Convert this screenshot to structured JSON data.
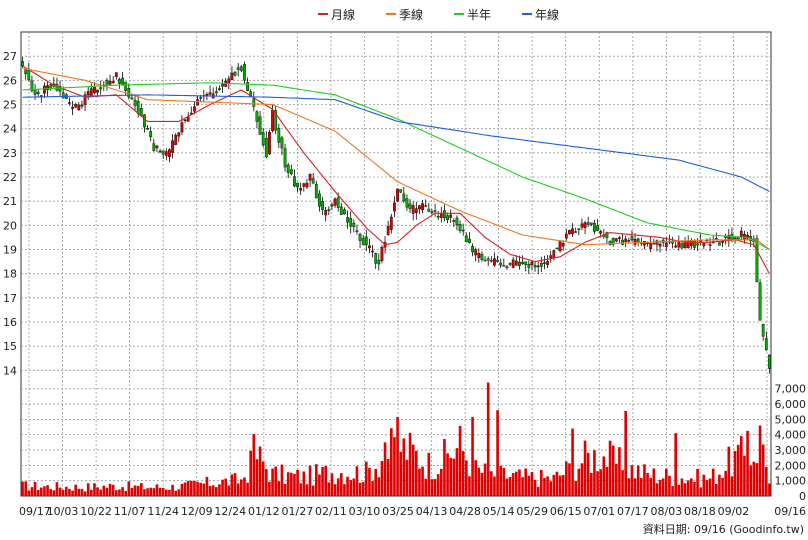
{
  "chart_data": {
    "type": "candlestick",
    "legend": {
      "placement": "top-center",
      "entries": [
        {
          "name": "月線",
          "color": "#e02020"
        },
        {
          "name": "季線",
          "color": "#f07820"
        },
        {
          "name": "半年",
          "color": "#20d020"
        },
        {
          "name": "年線",
          "color": "#2060e0"
        }
      ]
    },
    "price_axis": {
      "ylim": [
        13.6,
        28.0
      ],
      "ticks": [
        14,
        15,
        16,
        17,
        18,
        19,
        20,
        21,
        22,
        23,
        24,
        25,
        26,
        27
      ]
    },
    "volume_axis": {
      "ylim": [
        0,
        7700
      ],
      "ticks": [
        0,
        1000,
        2000,
        3000,
        4000,
        5000,
        6000,
        7000
      ],
      "tick_labels": [
        "0",
        "1,000",
        "2,000",
        "3,000",
        "4,000",
        "5,000",
        "6,000",
        "7,000"
      ]
    },
    "x_tick_labels": [
      "09/17",
      "10/03",
      "10/22",
      "11/07",
      "11/24",
      "12/09",
      "12/24",
      "01/12",
      "01/27",
      "02/11",
      "03/10",
      "03/25",
      "04/13",
      "04/28",
      "05/14",
      "05/29",
      "06/15",
      "07/01",
      "07/17",
      "08/03",
      "08/18",
      "09/02",
      "09/16"
    ],
    "grid": true,
    "bar_count": 240,
    "candle_colors": {
      "up": "#e00000",
      "down": "#00b000"
    },
    "volume_color": "#e00000",
    "close_anchors": [
      [
        0,
        26.6
      ],
      [
        4,
        25.4
      ],
      [
        10,
        25.8
      ],
      [
        16,
        24.8
      ],
      [
        22,
        25.5
      ],
      [
        30,
        26.2
      ],
      [
        36,
        25.0
      ],
      [
        42,
        23.2
      ],
      [
        46,
        22.9
      ],
      [
        50,
        24.0
      ],
      [
        56,
        25.2
      ],
      [
        62,
        25.5
      ],
      [
        66,
        26.2
      ],
      [
        70,
        26.5
      ],
      [
        72,
        25.6
      ],
      [
        74,
        24.8
      ],
      [
        78,
        23.0
      ],
      [
        80,
        24.6
      ],
      [
        84,
        22.5
      ],
      [
        88,
        21.5
      ],
      [
        92,
        22.0
      ],
      [
        96,
        20.5
      ],
      [
        100,
        21.0
      ],
      [
        106,
        19.8
      ],
      [
        110,
        19.2
      ],
      [
        114,
        18.4
      ],
      [
        118,
        20.5
      ],
      [
        120,
        21.5
      ],
      [
        124,
        20.6
      ],
      [
        128,
        20.8
      ],
      [
        132,
        20.5
      ],
      [
        136,
        20.4
      ],
      [
        140,
        19.9
      ],
      [
        144,
        18.9
      ],
      [
        148,
        18.6
      ],
      [
        154,
        18.3
      ],
      [
        158,
        18.5
      ],
      [
        164,
        18.3
      ],
      [
        168,
        18.6
      ],
      [
        172,
        19.2
      ],
      [
        176,
        19.8
      ],
      [
        180,
        20.1
      ],
      [
        184,
        19.8
      ],
      [
        188,
        19.3
      ],
      [
        194,
        19.4
      ],
      [
        200,
        19.2
      ],
      [
        206,
        19.3
      ],
      [
        212,
        19.2
      ],
      [
        218,
        19.3
      ],
      [
        222,
        19.3
      ],
      [
        226,
        19.5
      ],
      [
        230,
        19.6
      ],
      [
        234,
        19.4
      ],
      [
        236,
        16.0
      ],
      [
        238,
        14.8
      ],
      [
        239,
        14.25
      ]
    ],
    "volume_anchors": [
      [
        0,
        700
      ],
      [
        10,
        650
      ],
      [
        20,
        620
      ],
      [
        30,
        700
      ],
      [
        40,
        600
      ],
      [
        50,
        650
      ],
      [
        60,
        900
      ],
      [
        70,
        1100
      ],
      [
        75,
        2800
      ],
      [
        80,
        1500
      ],
      [
        90,
        1300
      ],
      [
        100,
        1700
      ],
      [
        110,
        1600
      ],
      [
        115,
        2600
      ],
      [
        120,
        3500
      ],
      [
        125,
        3000
      ],
      [
        130,
        2200
      ],
      [
        135,
        2600
      ],
      [
        140,
        3500
      ],
      [
        145,
        1800
      ],
      [
        150,
        1500
      ],
      [
        160,
        1300
      ],
      [
        170,
        1200
      ],
      [
        175,
        1900
      ],
      [
        180,
        2600
      ],
      [
        185,
        2900
      ],
      [
        190,
        2300
      ],
      [
        200,
        1500
      ],
      [
        210,
        1300
      ],
      [
        220,
        1200
      ],
      [
        228,
        2600
      ],
      [
        234,
        3000
      ],
      [
        236,
        3800
      ],
      [
        239,
        1300
      ]
    ],
    "volume_spikes": [
      [
        74,
        4050
      ],
      [
        116,
        3500
      ],
      [
        120,
        5150
      ],
      [
        144,
        5150
      ],
      [
        149,
        7400
      ],
      [
        152,
        5600
      ],
      [
        176,
        4400
      ],
      [
        193,
        5550
      ],
      [
        209,
        4100
      ],
      [
        232,
        4250
      ],
      [
        236,
        4600
      ]
    ],
    "ma_series": [
      {
        "name": "月線",
        "anchors": [
          [
            0,
            26.6
          ],
          [
            10,
            25.8
          ],
          [
            20,
            25.3
          ],
          [
            30,
            25.4
          ],
          [
            40,
            24.3
          ],
          [
            50,
            24.3
          ],
          [
            60,
            25.0
          ],
          [
            70,
            25.6
          ],
          [
            80,
            24.8
          ],
          [
            90,
            23.0
          ],
          [
            100,
            21.4
          ],
          [
            110,
            19.9
          ],
          [
            116,
            19.2
          ],
          [
            120,
            19.3
          ],
          [
            126,
            20.0
          ],
          [
            132,
            20.5
          ],
          [
            140,
            20.5
          ],
          [
            148,
            19.5
          ],
          [
            156,
            18.8
          ],
          [
            164,
            18.5
          ],
          [
            172,
            18.7
          ],
          [
            180,
            19.3
          ],
          [
            188,
            19.7
          ],
          [
            196,
            19.6
          ],
          [
            204,
            19.5
          ],
          [
            212,
            19.3
          ],
          [
            220,
            19.3
          ],
          [
            228,
            19.4
          ],
          [
            234,
            19.2
          ],
          [
            239,
            18.0
          ]
        ]
      },
      {
        "name": "季線",
        "anchors": [
          [
            0,
            26.5
          ],
          [
            20,
            26.0
          ],
          [
            40,
            25.2
          ],
          [
            60,
            25.1
          ],
          [
            80,
            25.0
          ],
          [
            100,
            23.9
          ],
          [
            120,
            21.8
          ],
          [
            140,
            20.6
          ],
          [
            160,
            19.6
          ],
          [
            180,
            19.2
          ],
          [
            200,
            19.3
          ],
          [
            220,
            19.4
          ],
          [
            235,
            19.4
          ],
          [
            239,
            19.0
          ]
        ]
      },
      {
        "name": "半年",
        "anchors": [
          [
            0,
            25.6
          ],
          [
            30,
            25.8
          ],
          [
            60,
            25.9
          ],
          [
            80,
            25.8
          ],
          [
            100,
            25.4
          ],
          [
            120,
            24.4
          ],
          [
            140,
            23.2
          ],
          [
            160,
            22.0
          ],
          [
            180,
            21.1
          ],
          [
            200,
            20.1
          ],
          [
            220,
            19.6
          ],
          [
            232,
            19.5
          ],
          [
            239,
            19.0
          ]
        ]
      },
      {
        "name": "年線",
        "anchors": [
          [
            0,
            25.3
          ],
          [
            40,
            25.4
          ],
          [
            80,
            25.3
          ],
          [
            100,
            25.2
          ],
          [
            120,
            24.3
          ],
          [
            150,
            23.7
          ],
          [
            180,
            23.2
          ],
          [
            210,
            22.7
          ],
          [
            230,
            22.0
          ],
          [
            239,
            21.4
          ]
        ]
      }
    ],
    "footer": {
      "label": "資料日期: 09/16",
      "source": "(Goodinfo.tw)"
    }
  }
}
